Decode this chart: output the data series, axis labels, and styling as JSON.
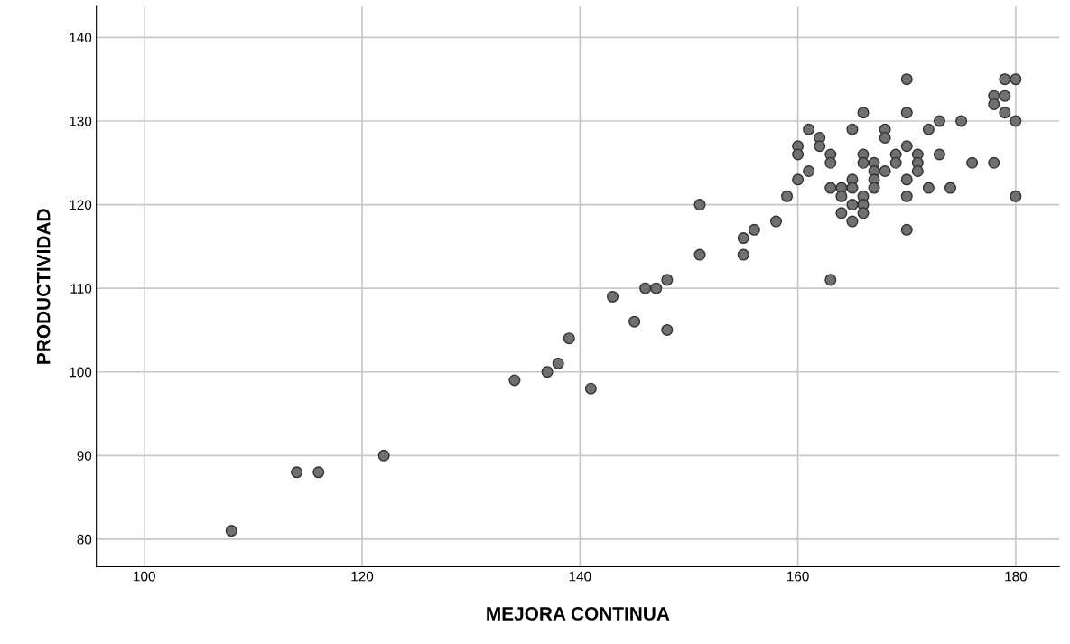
{
  "chart_data": {
    "type": "scatter",
    "xlabel": "MEJORA CONTINUA",
    "ylabel": "PRODUCTIVIDAD",
    "x": [
      108,
      114,
      116,
      122,
      134,
      137,
      138,
      139,
      141,
      143,
      145,
      146,
      147,
      148,
      148,
      151,
      151,
      155,
      155,
      156,
      158,
      159,
      160,
      160,
      160,
      161,
      161,
      162,
      162,
      163,
      163,
      163,
      163,
      164,
      164,
      164,
      165,
      165,
      165,
      165,
      165,
      166,
      166,
      166,
      166,
      166,
      166,
      167,
      167,
      167,
      167,
      168,
      168,
      168,
      169,
      169,
      170,
      170,
      170,
      170,
      170,
      170,
      171,
      171,
      171,
      172,
      172,
      173,
      173,
      174,
      175,
      176,
      178,
      178,
      178,
      179,
      179,
      179,
      180,
      180,
      180
    ],
    "values": [
      81,
      88,
      88,
      90,
      99,
      100,
      101,
      104,
      98,
      109,
      106,
      110,
      110,
      111,
      105,
      120,
      114,
      116,
      114,
      117,
      118,
      121,
      127,
      126,
      123,
      129,
      124,
      128,
      127,
      126,
      125,
      122,
      111,
      122,
      121,
      119,
      129,
      123,
      122,
      120,
      118,
      131,
      126,
      125,
      121,
      120,
      119,
      125,
      124,
      123,
      122,
      129,
      128,
      124,
      126,
      125,
      135,
      131,
      127,
      123,
      121,
      117,
      126,
      125,
      124,
      129,
      122,
      130,
      126,
      122,
      130,
      125,
      133,
      132,
      125,
      135,
      133,
      131,
      135,
      130,
      121
    ],
    "color": "#707070",
    "xlim": [
      95.6,
      184
    ],
    "ylim": [
      76.7,
      143.7
    ],
    "xticks": [
      100,
      120,
      140,
      160,
      180
    ],
    "yticks": [
      80,
      90,
      100,
      110,
      120,
      130,
      140
    ],
    "grid": true,
    "marker": "circle"
  }
}
